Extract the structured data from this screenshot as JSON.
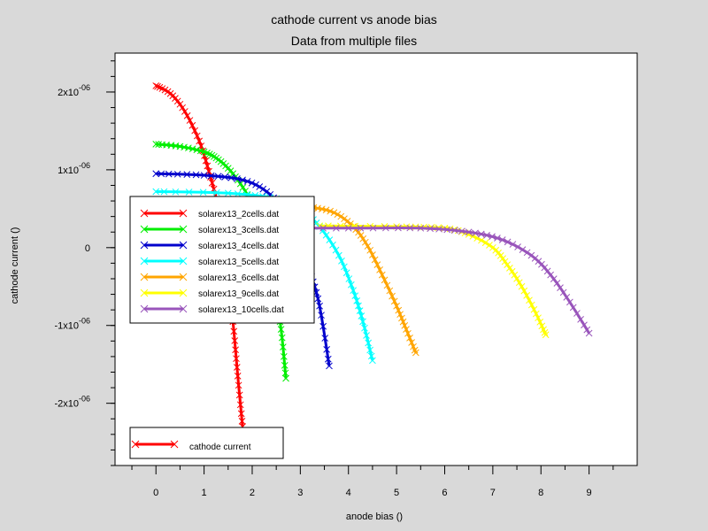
{
  "chart_data": {
    "type": "line",
    "title": "cathode current vs anode bias",
    "subtitle": "Data from multiple files",
    "xlabel": "anode bias ()",
    "ylabel": "cathode current ()",
    "xlim": [
      -0.85,
      10
    ],
    "ylim": [
      -2.8e-06,
      2.5e-06
    ],
    "xticks": [
      0,
      1,
      2,
      3,
      4,
      5,
      6,
      7,
      8,
      9
    ],
    "yticks": [
      {
        "value": 2e-06,
        "label": "2x10",
        "exp": "-06"
      },
      {
        "value": 1e-06,
        "label": "1x10",
        "exp": "-06"
      },
      {
        "value": 0,
        "label": "0",
        "exp": ""
      },
      {
        "value": -1e-06,
        "label": "-1x10",
        "exp": "-06"
      },
      {
        "value": -2e-06,
        "label": "-2x10",
        "exp": "-06"
      }
    ],
    "grid": false,
    "legend_placement": "center-left",
    "marker": "x",
    "series": [
      {
        "name": "solarex13_2cells.dat",
        "color": "#ff0000",
        "x": [
          0,
          0.3,
          0.6,
          0.9,
          1.1,
          1.3,
          1.45,
          1.6,
          1.7,
          1.8
        ],
        "y": [
          2.08e-06,
          1.98e-06,
          1.75e-06,
          1.37e-06,
          9.8e-07,
          5e-07,
          -1e-07,
          -9.5e-07,
          -1.65e-06,
          -2.3e-06
        ]
      },
      {
        "name": "solarex13_3cells.dat",
        "color": "#00ee00",
        "x": [
          0,
          0.5,
          1.0,
          1.3,
          1.6,
          1.9,
          2.1,
          2.3,
          2.45,
          2.6,
          2.7
        ],
        "y": [
          1.33e-06,
          1.3e-06,
          1.23e-06,
          1.13e-06,
          9.5e-07,
          6.8e-07,
          4e-07,
          -7e-08,
          -5e-07,
          -1.05e-06,
          -1.68e-06
        ]
      },
      {
        "name": "solarex13_4cells.dat",
        "color": "#0000cc",
        "x": [
          0,
          1.0,
          1.8,
          2.3,
          2.7,
          3.0,
          3.2,
          3.4,
          3.6
        ],
        "y": [
          9.5e-07,
          9.3e-07,
          8.7e-07,
          7.2e-07,
          4.5e-07,
          1.5e-07,
          -3e-07,
          -7.5e-07,
          -1.52e-06
        ]
      },
      {
        "name": "solarex13_5cells.dat",
        "color": "#00ffff",
        "x": [
          0,
          1.5,
          2.5,
          3.0,
          3.4,
          3.8,
          4.1,
          4.3,
          4.5
        ],
        "y": [
          7.2e-07,
          7e-07,
          6.3e-07,
          5e-07,
          2.7e-07,
          -1e-07,
          -5.5e-07,
          -9.5e-07,
          -1.45e-06
        ]
      },
      {
        "name": "solarex13_6cells.dat",
        "color": "#ffa500",
        "x": [
          2.8,
          3.2,
          3.7,
          4.1,
          4.4,
          4.7,
          5.0,
          5.2,
          5.4
        ],
        "y": [
          5.2e-07,
          5.2e-07,
          4.5e-07,
          2.7e-07,
          2e-08,
          -3.5e-07,
          -7.5e-07,
          -1.05e-06,
          -1.35e-06
        ]
      },
      {
        "name": "solarex13_9cells.dat",
        "color": "#ffff00",
        "x": [
          3.4,
          5.0,
          6.0,
          6.5,
          7.0,
          7.3,
          7.6,
          7.9,
          8.1
        ],
        "y": [
          2.8e-07,
          2.7e-07,
          2.5e-07,
          1.7e-07,
          0.0,
          -2.2e-07,
          -5e-07,
          -8.5e-07,
          -1.12e-06
        ]
      },
      {
        "name": "solarex13_10cells.dat",
        "color": "#9955bb",
        "x": [
          2.6,
          4.0,
          5.5,
          6.5,
          7.2,
          7.8,
          8.2,
          8.6,
          9.0
        ],
        "y": [
          2.5e-07,
          2.5e-07,
          2.5e-07,
          2e-07,
          1e-07,
          -1e-07,
          -3.5e-07,
          -7e-07,
          -1.1e-06
        ]
      }
    ],
    "legend2": {
      "name": "cathode current",
      "color": "#ff0000"
    }
  }
}
